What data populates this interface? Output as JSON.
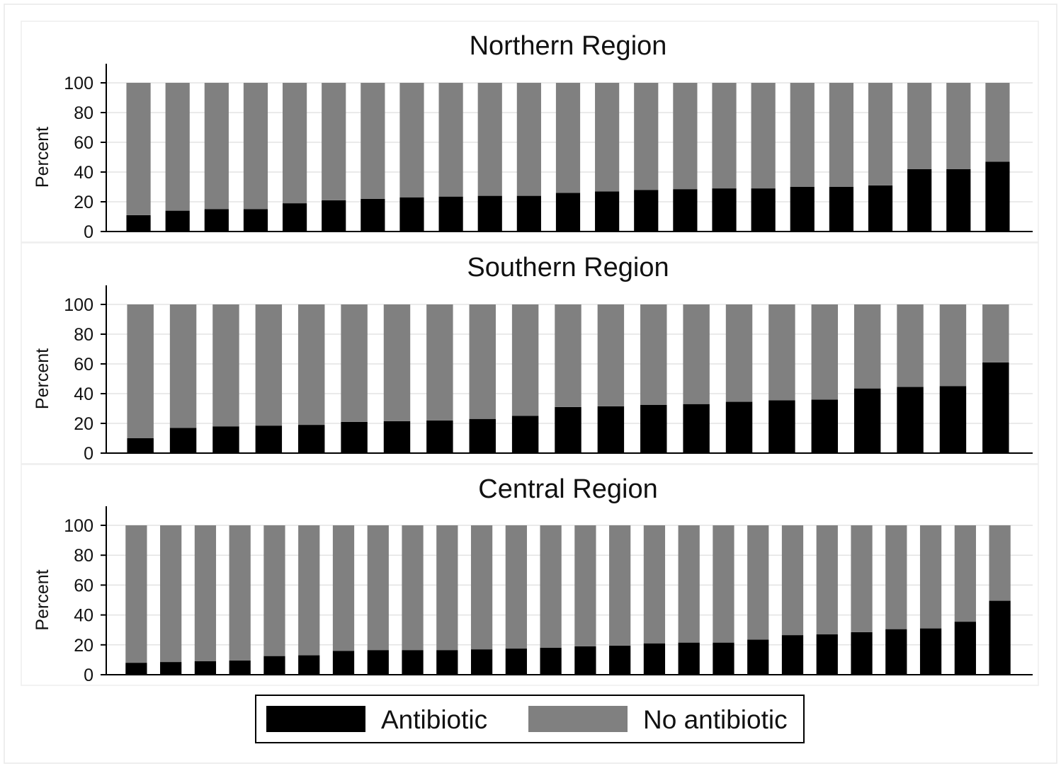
{
  "colors": {
    "antibiotic": "#000000",
    "no_antibiotic": "#808080",
    "grid": "#e3e3e3",
    "axis": "#000000",
    "panel_background": "#ffffff",
    "panel_border": "#eeeeee",
    "figure_border": "#e8e8e8"
  },
  "legend": {
    "position": "bottom",
    "items": [
      {
        "label": "Antibiotic",
        "color": "#000000"
      },
      {
        "label": "No antibiotic",
        "color": "#808080"
      }
    ]
  },
  "chart_data": [
    {
      "type": "bar",
      "stacked": true,
      "title": "Northern Region",
      "ylabel": "Percent",
      "xlabel": "",
      "ylim": [
        0,
        100
      ],
      "yticks": [
        0,
        20,
        40,
        60,
        80,
        100
      ],
      "grid": true,
      "series": [
        {
          "name": "Antibiotic",
          "values": [
            11,
            14,
            15,
            15,
            19,
            21,
            22,
            23,
            23.5,
            24,
            24,
            26,
            27,
            28,
            28.5,
            29,
            29,
            30,
            30,
            31,
            42,
            42,
            47
          ]
        },
        {
          "name": "No antibiotic",
          "values": [
            89,
            86,
            85,
            85,
            81,
            79,
            78,
            77,
            76.5,
            76,
            76,
            74,
            73,
            72,
            71.5,
            71,
            71,
            70,
            70,
            69,
            58,
            58,
            53
          ]
        }
      ]
    },
    {
      "type": "bar",
      "stacked": true,
      "title": "Southern Region",
      "ylabel": "Percent",
      "xlabel": "",
      "ylim": [
        0,
        100
      ],
      "yticks": [
        0,
        20,
        40,
        60,
        80,
        100
      ],
      "grid": true,
      "series": [
        {
          "name": "Antibiotic",
          "values": [
            10,
            17,
            18,
            18.5,
            19,
            21,
            21.5,
            22,
            23,
            25,
            31,
            31.5,
            32.5,
            33,
            34.5,
            35.5,
            36,
            43.5,
            44.5,
            45,
            61
          ]
        },
        {
          "name": "No antibiotic",
          "values": [
            90,
            83,
            82,
            81.5,
            81,
            79,
            78.5,
            78,
            77,
            75,
            69,
            68.5,
            67.5,
            67,
            65.5,
            64.5,
            64,
            56.5,
            55.5,
            55,
            39
          ]
        }
      ]
    },
    {
      "type": "bar",
      "stacked": true,
      "title": "Central Region",
      "ylabel": "Percent",
      "xlabel": "",
      "ylim": [
        0,
        100
      ],
      "yticks": [
        0,
        20,
        40,
        60,
        80,
        100
      ],
      "grid": true,
      "series": [
        {
          "name": "Antibiotic",
          "values": [
            8,
            8.5,
            9,
            9.5,
            12.5,
            13,
            16,
            16.5,
            16.5,
            16.5,
            17,
            17.5,
            18,
            19,
            19.5,
            21,
            21.5,
            21.5,
            23.5,
            26.5,
            27,
            28.5,
            30.5,
            31,
            35.5,
            49.5
          ]
        },
        {
          "name": "No antibiotic",
          "values": [
            92,
            91.5,
            91,
            90.5,
            87.5,
            87,
            84,
            83.5,
            83.5,
            83.5,
            83,
            82.5,
            82,
            81,
            80.5,
            79,
            78.5,
            78.5,
            76.5,
            73.5,
            73,
            71.5,
            69.5,
            69,
            64.5,
            50.5
          ]
        }
      ]
    }
  ]
}
